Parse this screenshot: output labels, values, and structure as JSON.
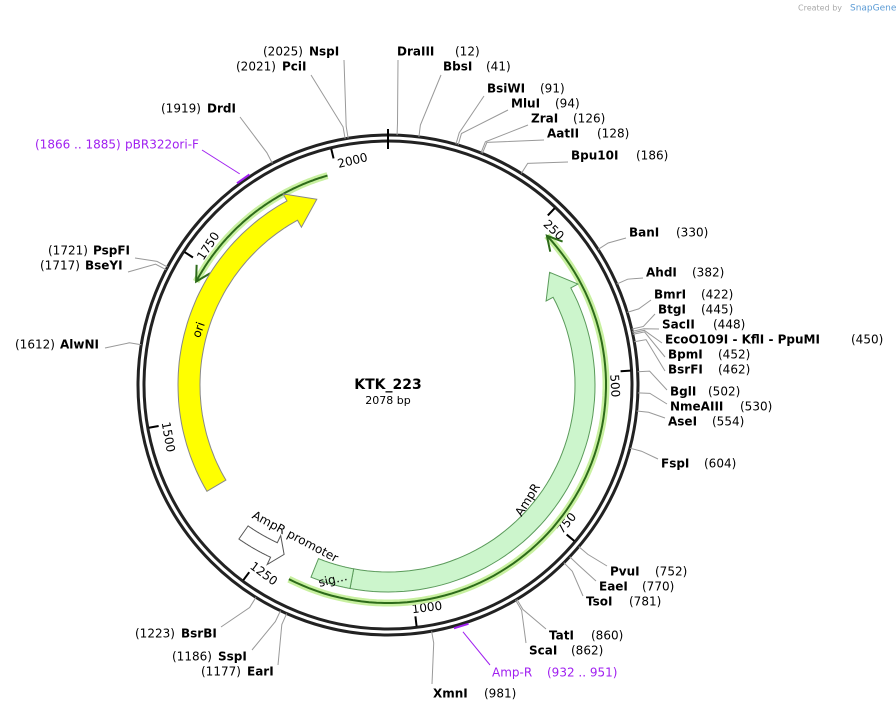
{
  "watermark": {
    "prefix": "Created by",
    "brand": "SnapGene"
  },
  "map": {
    "name": "KTK_223",
    "length_label": "2078 bp",
    "length": 2078
  },
  "ticks": [
    250,
    500,
    750,
    1000,
    1250,
    1500,
    1750,
    2000
  ],
  "sites": [
    {
      "name": "NspI",
      "label": "(2025)",
      "position": 2025
    },
    {
      "name": "PciI",
      "label": "(2021)",
      "position": 2021
    },
    {
      "name": "DrdI",
      "label": "(1919)",
      "position": 1919
    },
    {
      "name": "PspFI",
      "label": "(1721)",
      "position": 1721
    },
    {
      "name": "BseYI",
      "label": "(1717)",
      "position": 1717
    },
    {
      "name": "AlwNI",
      "label": "(1612)",
      "position": 1612
    },
    {
      "name": "BsrBI",
      "label": "(1223)",
      "position": 1223
    },
    {
      "name": "SspI",
      "label": "(1186)",
      "position": 1186
    },
    {
      "name": "EarI",
      "label": "(1177)",
      "position": 1177
    },
    {
      "name": "XmnI",
      "label": "(981)",
      "position": 981
    },
    {
      "name": "DraIII",
      "label": "(12)",
      "position": 12
    },
    {
      "name": "BbsI",
      "label": "(41)",
      "position": 41
    },
    {
      "name": "BsiWI",
      "label": "(91)",
      "position": 91
    },
    {
      "name": "MluI",
      "label": "(94)",
      "position": 94
    },
    {
      "name": "ZraI",
      "label": "(126)",
      "position": 126
    },
    {
      "name": "AatII",
      "label": "(128)",
      "position": 128
    },
    {
      "name": "Bpu10I",
      "label": "(186)",
      "position": 186
    },
    {
      "name": "BanI",
      "label": "(330)",
      "position": 330
    },
    {
      "name": "AhdI",
      "label": "(382)",
      "position": 382
    },
    {
      "name": "BmrI",
      "label": "(422)",
      "position": 422
    },
    {
      "name": "BtgI",
      "label": "(445)",
      "position": 445
    },
    {
      "name": "SacII",
      "label": "(448)",
      "position": 448
    },
    {
      "name": "EcoO109I - KflI - PpuMI",
      "label": "(450)",
      "position": 450
    },
    {
      "name": "BpmI",
      "label": "(452)",
      "position": 452
    },
    {
      "name": "BsrFI",
      "label": "(462)",
      "position": 462
    },
    {
      "name": "BglI",
      "label": "(502)",
      "position": 502
    },
    {
      "name": "NmeAIII",
      "label": "(530)",
      "position": 530
    },
    {
      "name": "AseI",
      "label": "(554)",
      "position": 554
    },
    {
      "name": "FspI",
      "label": "(604)",
      "position": 604
    },
    {
      "name": "PvuI",
      "label": "(752)",
      "position": 752
    },
    {
      "name": "EaeI",
      "label": "(770)",
      "position": 770
    },
    {
      "name": "TsoI",
      "label": "(781)",
      "position": 781
    },
    {
      "name": "TatI",
      "label": "(860)",
      "position": 860
    },
    {
      "name": "ScaI",
      "label": "(862)",
      "position": 862
    }
  ],
  "features": [
    {
      "name": "ori",
      "start": 1383,
      "end": 1957
    },
    {
      "name": "AmpR",
      "start": 318,
      "end": 1100
    },
    {
      "name": "sig…",
      "start": 1100,
      "end": 1165
    },
    {
      "name": "AmpR promoter",
      "start": 1165,
      "end": 1240
    }
  ],
  "primers": [
    {
      "name": "pBR322ori-F",
      "label": "(1866 .. 1885)",
      "start": 1866,
      "end": 1885
    },
    {
      "name": "Amp-R",
      "label": "(932 .. 951)",
      "start": 932,
      "end": 951
    }
  ]
}
